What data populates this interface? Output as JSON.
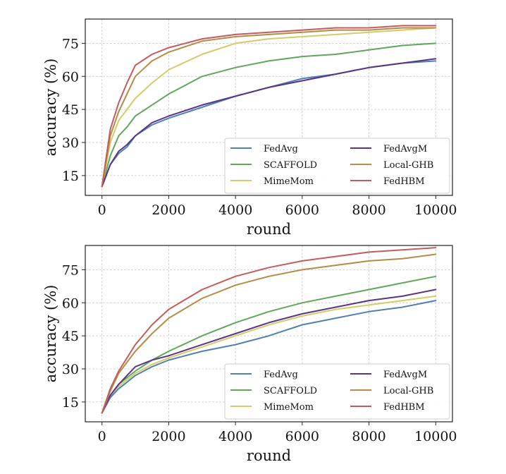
{
  "chart_data": [
    {
      "type": "line",
      "xlabel": "round",
      "ylabel": "accuracy (%)",
      "xlim": [
        -500,
        10500
      ],
      "ylim": [
        6,
        86
      ],
      "xticks": [
        0,
        2000,
        4000,
        6000,
        8000,
        10000
      ],
      "xtick_labels": [
        "0",
        "2000",
        "4000",
        "6000",
        "8000",
        "10000"
      ],
      "yticks": [
        15,
        30,
        45,
        60,
        75
      ],
      "ytick_labels": [
        "15",
        "30",
        "45",
        "60",
        "75"
      ],
      "grid": true,
      "legend_position": "lower-right",
      "legend_columns": 2,
      "series": [
        {
          "name": "FedAvg",
          "color": "#4f81b2",
          "x": [
            0,
            250,
            500,
            750,
            1000,
            1500,
            2000,
            3000,
            4000,
            5000,
            6000,
            7000,
            8000,
            9000,
            10000
          ],
          "y": [
            10,
            20,
            25,
            28,
            33,
            38,
            41,
            46,
            51,
            55,
            59,
            61,
            64,
            66,
            67
          ]
        },
        {
          "name": "SCAFFOLD",
          "color": "#5ea85a",
          "x": [
            0,
            250,
            500,
            750,
            1000,
            1500,
            2000,
            3000,
            4000,
            5000,
            6000,
            7000,
            8000,
            9000,
            10000
          ],
          "y": [
            10,
            24,
            33,
            37,
            42,
            47,
            52,
            60,
            64,
            67,
            69,
            70,
            72,
            74,
            75
          ]
        },
        {
          "name": "MimeMom",
          "color": "#d3cb6a",
          "x": [
            0,
            250,
            500,
            750,
            1000,
            1500,
            2000,
            3000,
            4000,
            5000,
            6000,
            7000,
            8000,
            9000,
            10000
          ],
          "y": [
            10,
            30,
            40,
            45,
            50,
            57,
            63,
            70,
            75,
            77,
            78,
            79,
            80,
            81,
            82
          ]
        },
        {
          "name": "FedAvgM",
          "color": "#5b3486",
          "x": [
            0,
            250,
            500,
            750,
            1000,
            1500,
            2000,
            3000,
            4000,
            5000,
            6000,
            7000,
            8000,
            9000,
            10000
          ],
          "y": [
            10,
            20,
            26,
            29,
            33,
            39,
            42,
            47,
            51,
            55,
            58,
            61,
            64,
            66,
            68
          ]
        },
        {
          "name": "Local-GHB",
          "color": "#b38c46",
          "x": [
            0,
            250,
            500,
            750,
            1000,
            1500,
            2000,
            3000,
            4000,
            5000,
            6000,
            7000,
            8000,
            9000,
            10000
          ],
          "y": [
            10,
            33,
            44,
            52,
            60,
            67,
            71,
            76,
            78,
            79,
            80,
            81,
            81,
            82,
            82
          ]
        },
        {
          "name": "FedHBM",
          "color": "#c65b5b",
          "x": [
            0,
            250,
            500,
            750,
            1000,
            1500,
            2000,
            3000,
            4000,
            5000,
            6000,
            7000,
            8000,
            9000,
            10000
          ],
          "y": [
            10,
            36,
            48,
            57,
            65,
            70,
            73,
            77,
            79,
            80,
            81,
            82,
            82,
            83,
            83
          ]
        }
      ]
    },
    {
      "type": "line",
      "xlabel": "round",
      "ylabel": "accuracy (%)",
      "xlim": [
        -500,
        10500
      ],
      "ylim": [
        6,
        86
      ],
      "xticks": [
        0,
        2000,
        4000,
        6000,
        8000,
        10000
      ],
      "xtick_labels": [
        "0",
        "2000",
        "4000",
        "6000",
        "8000",
        "10000"
      ],
      "yticks": [
        15,
        30,
        45,
        60,
        75
      ],
      "ytick_labels": [
        "15",
        "30",
        "45",
        "60",
        "75"
      ],
      "grid": true,
      "legend_position": "lower-right",
      "legend_columns": 2,
      "series": [
        {
          "name": "FedAvg",
          "color": "#4f81b2",
          "x": [
            0,
            250,
            500,
            750,
            1000,
            1500,
            2000,
            3000,
            4000,
            5000,
            6000,
            7000,
            8000,
            9000,
            10000
          ],
          "y": [
            10,
            17,
            21,
            24,
            27,
            31,
            34,
            38,
            41,
            45,
            50,
            53,
            56,
            58,
            61
          ]
        },
        {
          "name": "SCAFFOLD",
          "color": "#5ea85a",
          "x": [
            0,
            250,
            500,
            750,
            1000,
            1500,
            2000,
            3000,
            4000,
            5000,
            6000,
            7000,
            8000,
            9000,
            10000
          ],
          "y": [
            10,
            18,
            23,
            26,
            29,
            34,
            38,
            45,
            51,
            56,
            60,
            63,
            66,
            69,
            72
          ]
        },
        {
          "name": "MimeMom",
          "color": "#d3cb6a",
          "x": [
            0,
            250,
            500,
            750,
            1000,
            1500,
            2000,
            3000,
            4000,
            5000,
            6000,
            7000,
            8000,
            9000,
            10000
          ],
          "y": [
            10,
            18,
            22,
            25,
            28,
            32,
            35,
            40,
            45,
            50,
            54,
            57,
            59,
            61,
            63
          ]
        },
        {
          "name": "FedAvgM",
          "color": "#5b3486",
          "x": [
            0,
            250,
            500,
            750,
            1000,
            1500,
            2000,
            3000,
            4000,
            5000,
            6000,
            7000,
            8000,
            9000,
            10000
          ],
          "y": [
            10,
            18,
            23,
            27,
            31,
            34,
            36,
            41,
            46,
            51,
            55,
            58,
            61,
            63,
            66
          ]
        },
        {
          "name": "Local-GHB",
          "color": "#b38c46",
          "x": [
            0,
            250,
            500,
            750,
            1000,
            1500,
            2000,
            3000,
            4000,
            5000,
            6000,
            7000,
            8000,
            9000,
            10000
          ],
          "y": [
            10,
            20,
            28,
            33,
            38,
            46,
            53,
            62,
            68,
            72,
            75,
            77,
            79,
            80,
            82
          ]
        },
        {
          "name": "FedHBM",
          "color": "#c65b5b",
          "x": [
            0,
            250,
            500,
            750,
            1000,
            1500,
            2000,
            3000,
            4000,
            5000,
            6000,
            7000,
            8000,
            9000,
            10000
          ],
          "y": [
            10,
            21,
            29,
            35,
            41,
            50,
            57,
            66,
            72,
            76,
            79,
            81,
            83,
            84,
            85
          ]
        }
      ]
    }
  ]
}
